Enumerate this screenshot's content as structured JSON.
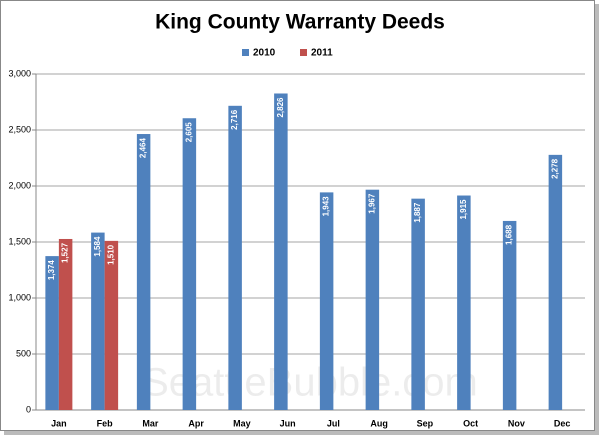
{
  "chart_data": {
    "type": "bar",
    "title": "King County Warranty Deeds",
    "watermark": "SeattleBubble.com",
    "categories": [
      "Jan",
      "Feb",
      "Mar",
      "Apr",
      "May",
      "Jun",
      "Jul",
      "Aug",
      "Sep",
      "Oct",
      "Nov",
      "Dec"
    ],
    "series": [
      {
        "name": "2010",
        "color": "#4f81bd",
        "values": [
          1374,
          1584,
          2464,
          2605,
          2716,
          2826,
          1943,
          1967,
          1887,
          1915,
          1688,
          2278
        ],
        "value_labels": [
          "1,374",
          "1,584",
          "2,464",
          "2,605",
          "2,716",
          "2,826",
          "1,943",
          "1,967",
          "1,887",
          "1,915",
          "1,688",
          "2,278"
        ]
      },
      {
        "name": "2011",
        "color": "#c0504d",
        "values": [
          1527,
          1510,
          null,
          null,
          null,
          null,
          null,
          null,
          null,
          null,
          null,
          null
        ],
        "value_labels": [
          "1,527",
          "1,510",
          null,
          null,
          null,
          null,
          null,
          null,
          null,
          null,
          null,
          null
        ]
      }
    ],
    "ylim": [
      0,
      3000
    ],
    "yticks": [
      0,
      500,
      {
        "value": 1000,
        "label": "1,000"
      },
      {
        "value": 1500,
        "label": "1,500"
      },
      {
        "value": 2000,
        "label": "2,000"
      },
      {
        "value": 2500,
        "label": "2,500"
      },
      {
        "value": 3000,
        "label": "3,000"
      }
    ],
    "legend": "top"
  }
}
